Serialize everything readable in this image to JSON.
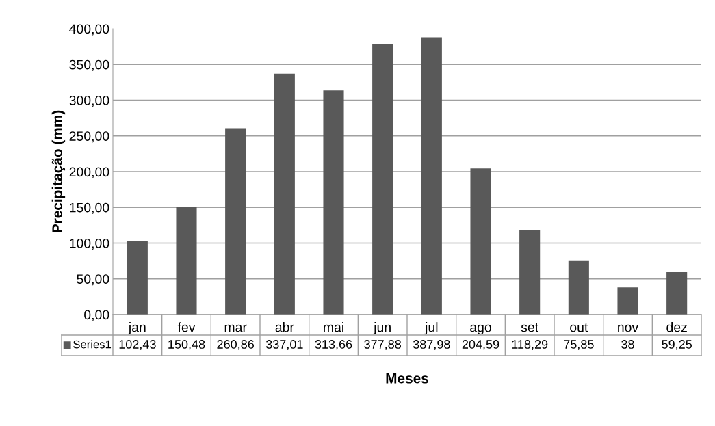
{
  "chart_data": {
    "type": "bar",
    "xlabel": "Meses",
    "ylabel": "Precipitação (mm)",
    "categories": [
      "jan",
      "fev",
      "mar",
      "abr",
      "mai",
      "jun",
      "jul",
      "ago",
      "set",
      "out",
      "nov",
      "dez"
    ],
    "series": [
      {
        "name": "Series1",
        "color": "#595959",
        "values": [
          102.43,
          150.48,
          260.86,
          337.01,
          313.66,
          377.88,
          387.98,
          204.59,
          118.29,
          75.85,
          38,
          59.25
        ],
        "value_labels": [
          "102,43",
          "150,48",
          "260,86",
          "337,01",
          "313,66",
          "377,88",
          "387,98",
          "204,59",
          "118,29",
          "75,85",
          "38",
          "59,25"
        ]
      }
    ],
    "ylim": [
      0,
      400
    ],
    "yticks": [
      {
        "value": 0,
        "label": "0,00"
      },
      {
        "value": 50,
        "label": "50,00"
      },
      {
        "value": 100,
        "label": "100,00"
      },
      {
        "value": 150,
        "label": "150,00"
      },
      {
        "value": 200,
        "label": "200,00"
      },
      {
        "value": 250,
        "label": "250,00"
      },
      {
        "value": 300,
        "label": "300,00"
      },
      {
        "value": 350,
        "label": "350,00"
      },
      {
        "value": 400,
        "label": "400,00"
      }
    ],
    "grid": "y",
    "legend": "bottom"
  }
}
